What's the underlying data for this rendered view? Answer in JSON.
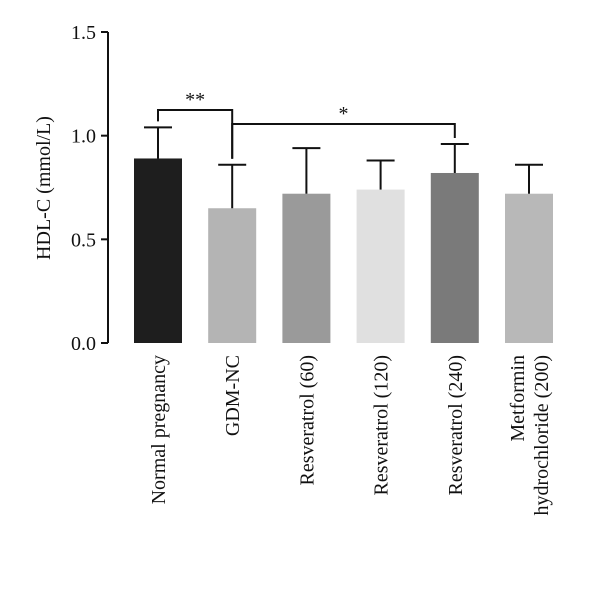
{
  "chart_data": {
    "type": "bar",
    "ylabel": "HDL-C (mmol/L)",
    "xlabel": "",
    "ylim": [
      0,
      1.5
    ],
    "yticks": [
      "0.0",
      "0.5",
      "1.0",
      "1.5"
    ],
    "categories": [
      [
        "Normal pregnancy"
      ],
      [
        "GDM-NC"
      ],
      [
        "Resveratrol (60)"
      ],
      [
        "Resveratrol (120)"
      ],
      [
        "Resveratrol (240)"
      ],
      [
        "Metformin",
        "hydrochloride (200)"
      ]
    ],
    "values": [
      0.89,
      0.65,
      0.72,
      0.74,
      0.82,
      0.72
    ],
    "errors": [
      0.15,
      0.21,
      0.22,
      0.14,
      0.14,
      0.14
    ],
    "colors": [
      "#1e1e1e",
      "#b4b4b4",
      "#9a9a9a",
      "#e0e0e0",
      "#7a7a7a",
      "#b8b8b8"
    ],
    "significance": [
      {
        "from": 0,
        "to": 1,
        "label": "**"
      },
      {
        "from": 1,
        "to": 4,
        "label": "*"
      }
    ]
  }
}
